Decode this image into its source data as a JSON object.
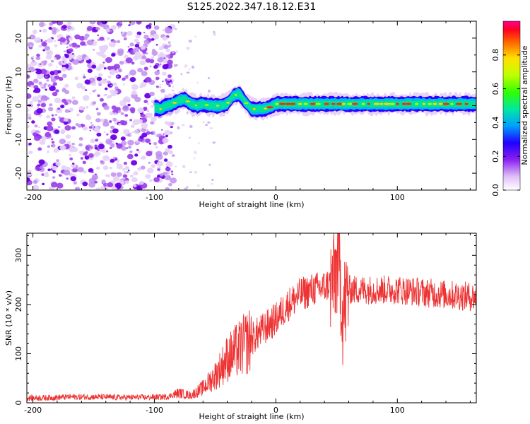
{
  "title": "S125.2022.347.18.12.E31",
  "top_panel": {
    "xlabel": "Height of straight line (km)",
    "ylabel": "Frequency (Hz)",
    "xticks": [
      "-200",
      "-100",
      "0",
      "100"
    ],
    "yticks": [
      "20",
      "10",
      "0",
      "-10",
      "-20"
    ],
    "colorbar": {
      "label": "Normalized spectral amplitude",
      "ticks": [
        "0.0",
        "0.2",
        "0.4",
        "0.6",
        "0.8"
      ]
    }
  },
  "bottom_panel": {
    "xlabel": "Height of straight line (km)",
    "ylabel": "SNR (10 * v/v)",
    "xticks": [
      "-200",
      "-100",
      "0",
      "100"
    ],
    "yticks": [
      "0",
      "100",
      "200",
      "300"
    ]
  },
  "chart_data": [
    {
      "type": "heatmap",
      "title": "S125.2022.347.18.12.E31",
      "xlabel": "Height of straight line (km)",
      "ylabel": "Frequency (Hz)",
      "xlim": [
        -205,
        165
      ],
      "ylim": [
        -25,
        25
      ],
      "colormap": [
        "#ffffff",
        "#d8b4f0",
        "#9b30e8",
        "#3000ff",
        "#00b0ff",
        "#00e0a0",
        "#40ff00",
        "#c0ff00",
        "#ffe000",
        "#ff8000",
        "#ff0000",
        "#ff00a0"
      ],
      "colorbar_range": [
        0,
        1
      ],
      "ridge": {
        "x": [
          -100,
          -95,
          -90,
          -85,
          -80,
          -75,
          -70,
          -65,
          -60,
          -55,
          -50,
          -45,
          -40,
          -35,
          -30,
          -25,
          -20,
          -15,
          -10,
          -5,
          0,
          10,
          20,
          40,
          60,
          80,
          100,
          120,
          140,
          165
        ],
        "y": [
          -0.5,
          -1,
          0,
          0.5,
          1.5,
          2,
          0.5,
          0,
          0.5,
          0,
          0,
          0,
          0.5,
          3,
          3.5,
          1,
          -1,
          -1,
          -1,
          -0.5,
          0.5,
          0.5,
          0.5,
          0.5,
          0.5,
          0.5,
          0.5,
          0.5,
          0.5,
          0.5
        ]
      },
      "noise_region_x": [
        -205,
        -90
      ],
      "note": ""
    },
    {
      "type": "line",
      "xlabel": "Height of straight line (km)",
      "ylabel": "SNR (10 * v/v)",
      "xlim": [
        -205,
        165
      ],
      "ylim": [
        0,
        345
      ],
      "color": "#ee3333",
      "x": [
        -205,
        -190,
        -170,
        -150,
        -130,
        -110,
        -90,
        -80,
        -70,
        -60,
        -50,
        -40,
        -30,
        -20,
        -10,
        0,
        10,
        20,
        30,
        40,
        48,
        52,
        55,
        60,
        70,
        80,
        100,
        120,
        140,
        165
      ],
      "y": [
        10,
        10,
        12,
        12,
        11,
        11,
        12,
        20,
        15,
        30,
        55,
        90,
        110,
        130,
        150,
        170,
        200,
        220,
        230,
        235,
        250,
        300,
        180,
        230,
        230,
        230,
        230,
        225,
        220,
        215
      ]
    }
  ]
}
